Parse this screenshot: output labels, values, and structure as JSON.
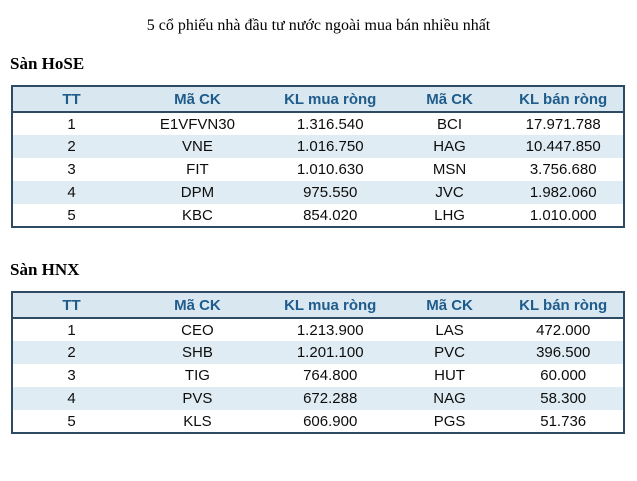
{
  "title": "5 cổ phiếu nhà đầu tư nước ngoài mua bán nhiều nhất",
  "colors": {
    "header_bg": "#d9e7f0",
    "header_text": "#1f5c8b",
    "row_alt_bg": "#dfecf3",
    "table_border": "#2f4a63",
    "body_text": "#0d0d0d"
  },
  "sections": [
    {
      "label": "Sàn HoSE",
      "columns": [
        "TT",
        "Mã CK",
        "KL mua ròng",
        "Mã CK",
        "KL bán ròng"
      ],
      "rows": [
        [
          "1",
          "E1VFVN30",
          "1.316.540",
          "BCI",
          "17.971.788"
        ],
        [
          "2",
          "VNE",
          "1.016.750",
          "HAG",
          "10.447.850"
        ],
        [
          "3",
          "FIT",
          "1.010.630",
          "MSN",
          "3.756.680"
        ],
        [
          "4",
          "DPM",
          "975.550",
          "JVC",
          "1.982.060"
        ],
        [
          "5",
          "KBC",
          "854.020",
          "LHG",
          "1.010.000"
        ]
      ]
    },
    {
      "label": "Sàn HNX",
      "columns": [
        "TT",
        "Mã CK",
        "KL mua ròng",
        "Mã CK",
        "KL bán ròng"
      ],
      "rows": [
        [
          "1",
          "CEO",
          "1.213.900",
          "LAS",
          "472.000"
        ],
        [
          "2",
          "SHB",
          "1.201.100",
          "PVC",
          "396.500"
        ],
        [
          "3",
          "TIG",
          "764.800",
          "HUT",
          "60.000"
        ],
        [
          "4",
          "PVS",
          "672.288",
          "NAG",
          "58.300"
        ],
        [
          "5",
          "KLS",
          "606.900",
          "PGS",
          "51.736"
        ]
      ]
    }
  ]
}
